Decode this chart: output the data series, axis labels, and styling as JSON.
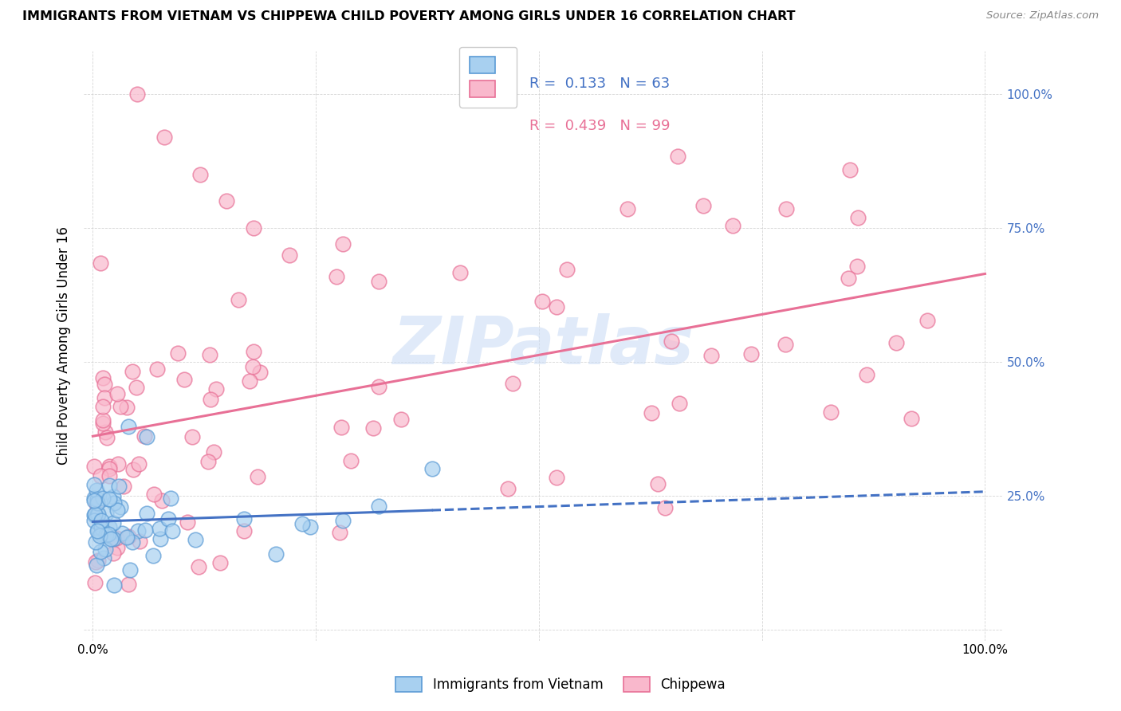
{
  "title": "IMMIGRANTS FROM VIETNAM VS CHIPPEWA CHILD POVERTY AMONG GIRLS UNDER 16 CORRELATION CHART",
  "source": "Source: ZipAtlas.com",
  "ylabel": "Child Poverty Among Girls Under 16",
  "blue_color": "#a8d0f0",
  "pink_color": "#f9b8cc",
  "blue_edge_color": "#5b9bd5",
  "pink_edge_color": "#e87096",
  "blue_line_color": "#4472c4",
  "pink_line_color": "#e87096",
  "right_tick_color": "#4472c4",
  "watermark_color": "#d0dff0",
  "legend_blue_r": "R = ",
  "legend_blue_r_val": "0.133",
  "legend_blue_n": "  N = ",
  "legend_blue_n_val": "63",
  "legend_pink_r": "R = ",
  "legend_pink_r_val": "0.439",
  "legend_pink_n": "  N = ",
  "legend_pink_n_val": "99"
}
